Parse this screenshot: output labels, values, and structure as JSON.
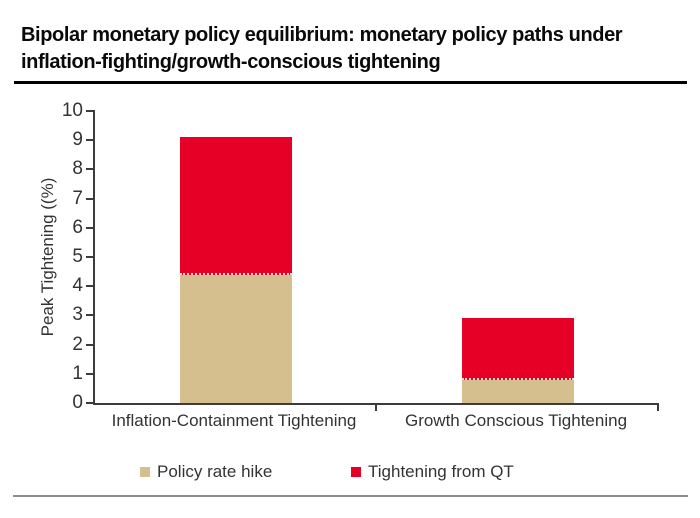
{
  "header": {
    "title_line1": "Bipolar monetary policy equilibrium: monetary policy paths under",
    "title_line2": "inflation-fighting/growth-conscious tightening"
  },
  "chart_data": {
    "type": "bar",
    "stacked": true,
    "categories": [
      "Inflation-Containment Tightening",
      "Growth Conscious Tightening"
    ],
    "series": [
      {
        "name": "Policy rate hike",
        "color": "#D5BF8F",
        "values": [
          4.4,
          0.8
        ]
      },
      {
        "name": "Tightening from QT",
        "color": "#E60026",
        "values": [
          4.7,
          2.1
        ]
      }
    ],
    "ylabel": "Peak Tightening ((%)",
    "ylim": [
      0,
      10
    ],
    "ytick_step": 1,
    "grid": false,
    "legend_position": "bottom",
    "axis_color": "#3c3c3c"
  }
}
